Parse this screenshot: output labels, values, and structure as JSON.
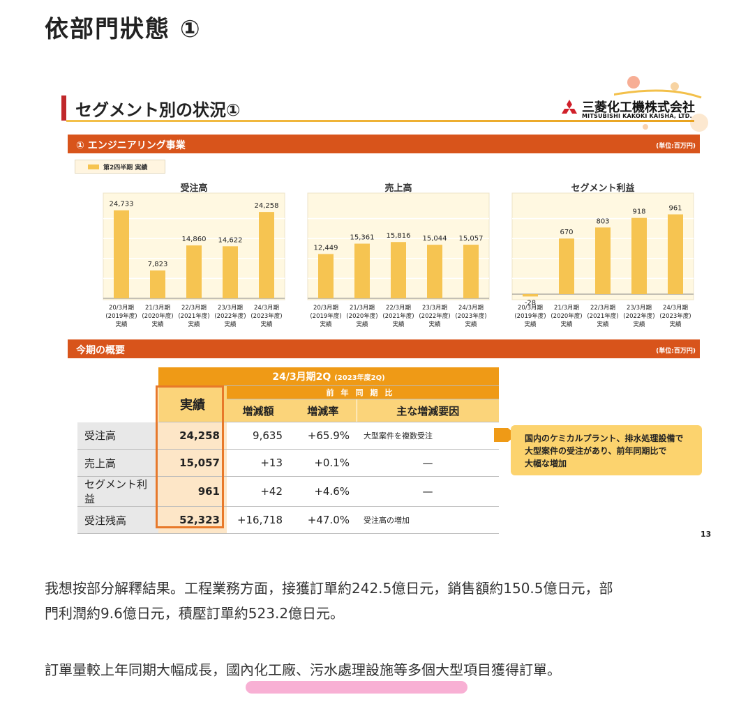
{
  "page_title": "依部門狀態 ①",
  "slide": {
    "title": "セグメント別の状況①",
    "logo_jp": "三菱化工機株式会社",
    "logo_en": "MITSUBISHI KAKOKI KAISHA, LTD.",
    "section1_title": "① エンジニアリング事業",
    "section2_title": "今期の概要",
    "unit": "(単位:百万円)",
    "legend": "第2四半期 実績",
    "page_number": "13",
    "colors": {
      "band": "#d8541b",
      "bar": "#f6c451",
      "chart_bg": "#fff8e1",
      "accent_line": "#c0282b"
    }
  },
  "chart_data": [
    {
      "type": "bar",
      "title": "受注高",
      "categories": [
        "20/3月期\n(2019年度)\n実績",
        "21/3月期\n(2020年度)\n実績",
        "22/3月期\n(2021年度)\n実績",
        "23/3月期\n(2022年度)\n実績",
        "24/3月期\n(2023年度)\n実績"
      ],
      "values": [
        24733,
        7823,
        14860,
        14622,
        24258
      ],
      "labels": [
        "24,733",
        "7,823",
        "14,860",
        "14,622",
        "24,258"
      ],
      "series": [
        {
          "name": "第2四半期 実績",
          "values": [
            24733,
            7823,
            14860,
            14622,
            24258
          ]
        }
      ],
      "ylim": [
        0,
        28000
      ],
      "grid": true
    },
    {
      "type": "bar",
      "title": "売上高",
      "categories": [
        "20/3月期\n(2019年度)\n実績",
        "21/3月期\n(2020年度)\n実績",
        "22/3月期\n(2021年度)\n実績",
        "23/3月期\n(2022年度)\n実績",
        "24/3月期\n(2023年度)\n実績"
      ],
      "values": [
        12449,
        15361,
        15816,
        15044,
        15057
      ],
      "labels": [
        "12,449",
        "15,361",
        "15,816",
        "15,044",
        "15,057"
      ],
      "series": [
        {
          "name": "第2四半期 実績",
          "values": [
            12449,
            15361,
            15816,
            15044,
            15057
          ]
        }
      ],
      "ylim": [
        0,
        28000
      ],
      "grid": true
    },
    {
      "type": "bar",
      "title": "セグメント利益",
      "categories": [
        "20/3月期\n(2019年度)\n実績",
        "21/3月期\n(2020年度)\n実績",
        "22/3月期\n(2021年度)\n実績",
        "23/3月期\n(2022年度)\n実績",
        "24/3月期\n(2023年度)\n実績"
      ],
      "values": [
        -28,
        670,
        803,
        918,
        961
      ],
      "labels": [
        "-28",
        "670",
        "803",
        "918",
        "961"
      ],
      "series": [
        {
          "name": "第2四半期 実績",
          "values": [
            -28,
            670,
            803,
            918,
            961
          ]
        }
      ],
      "ylim": [
        -50,
        1150
      ],
      "grid": true
    }
  ],
  "table": {
    "period_header": "24/3月期2Q",
    "period_sub": "(2023年度2Q)",
    "actual_header": "実績",
    "yoy_header": "前年同期比",
    "col_change": "増減額",
    "col_rate": "増減率",
    "col_reason": "主な増減要因",
    "rows": [
      {
        "label": "受注高",
        "actual": "24,258",
        "change": "9,635",
        "rate": "+65.9%",
        "reason": "大型案件を複数受注"
      },
      {
        "label": "売上高",
        "actual": "15,057",
        "change": "+13",
        "rate": "+0.1%",
        "reason": "—"
      },
      {
        "label": "セグメント利益",
        "actual": "961",
        "change": "+42",
        "rate": "+4.6%",
        "reason": "—"
      },
      {
        "label": "受注残高",
        "actual": "52,323",
        "change": "+16,718",
        "rate": "+47.0%",
        "reason": "受注高の増加"
      }
    ]
  },
  "callout": {
    "line1": "国内のケミカルプラント、排水処理設備で",
    "line2": "大型案件の受注があり、前年同期比で",
    "line3": "大幅な増加"
  },
  "paragraphs": {
    "p1_line1": "我想按部分解釋結果。工程業務方面，接獲訂單約242.5億日元，銷售額約150.5億日元，部",
    "p1_line2": "門利潤約9.6億日元，積壓訂單約523.2億日元。",
    "p2": "訂單量較上年同期大幅成長，國內化工廠、污水處理設施等多個大型項目獲得訂單。"
  }
}
